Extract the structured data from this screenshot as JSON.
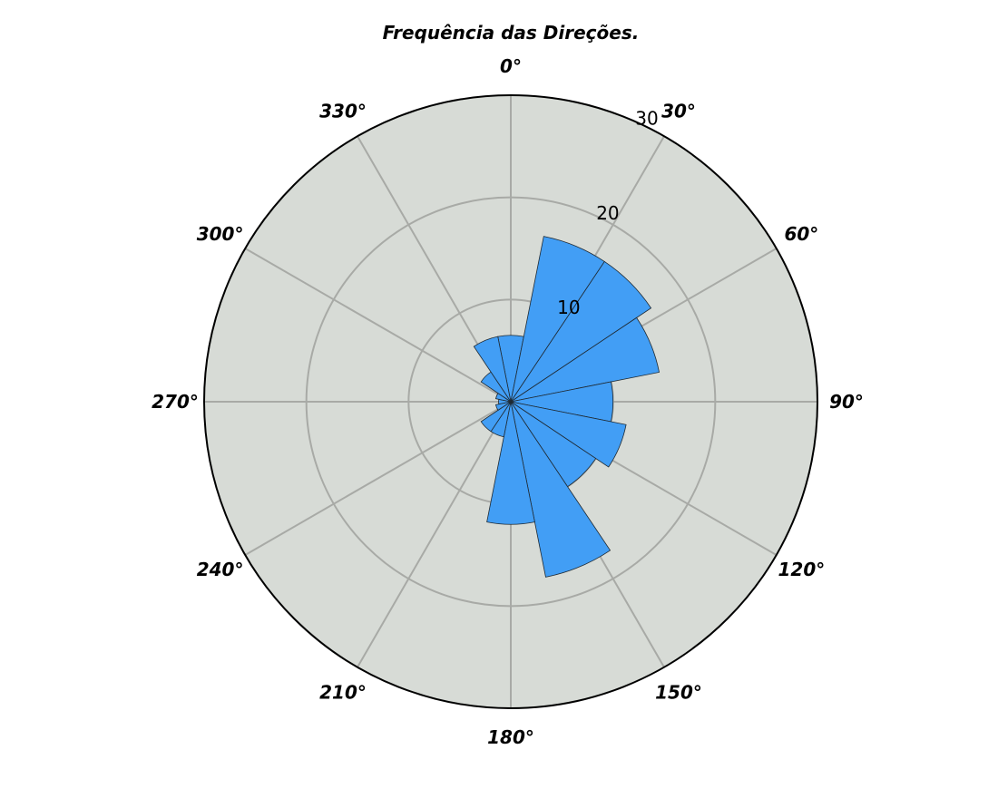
{
  "chart_data": {
    "type": "polar-bar",
    "title": "Frequência das Direções.",
    "theta_direction": "clockwise",
    "theta_zero": "N",
    "theta_ticks": [
      0,
      30,
      60,
      90,
      120,
      150,
      180,
      210,
      240,
      270,
      300,
      330
    ],
    "theta_tick_labels": [
      "0°",
      "30°",
      "60°",
      "90°",
      "120°",
      "150°",
      "180°",
      "210°",
      "240°",
      "270°",
      "300°",
      "330°"
    ],
    "r_ticks": [
      10,
      20,
      30
    ],
    "r_tick_labels": [
      "10",
      "20",
      "30"
    ],
    "rlim": [
      0,
      30
    ],
    "bin_width_deg": 22.5,
    "directions_deg": [
      0,
      22.5,
      45,
      67.5,
      90,
      112.5,
      135,
      157.5,
      180,
      202.5,
      225,
      247.5,
      270,
      292.5,
      315,
      337.5
    ],
    "values": [
      6.5,
      16.5,
      16.5,
      14.8,
      10,
      11.5,
      10,
      17.5,
      12,
      3.5,
      3.5,
      1.5,
      1.2,
      1.5,
      3.5,
      6.5
    ],
    "bar_color": "#429ef5",
    "background_color": "#d7dbd6",
    "grid": true
  }
}
